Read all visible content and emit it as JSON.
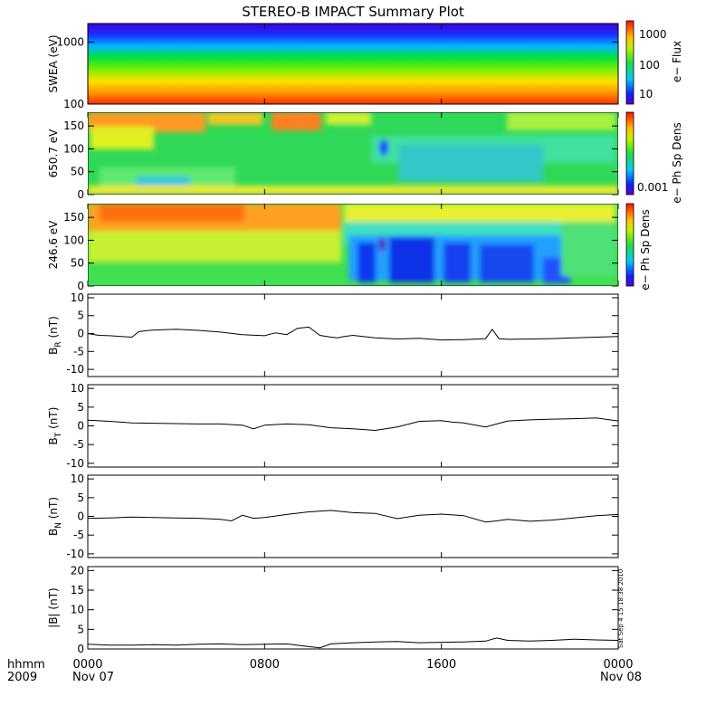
{
  "title": "STEREO-B IMPACT Summary Plot",
  "footer": {
    "hhmm": "hhmm",
    "year": "2009",
    "start_date": "Nov 07",
    "end_date": "Nov 08"
  },
  "stamp": "Sat Sep 4 15:18:38 2010",
  "x_axis": {
    "unit": "hhmm",
    "ticks": [
      "0000",
      "0800",
      "1600",
      "0000"
    ],
    "range_hours": [
      0,
      24
    ]
  },
  "colors": {
    "axis": "#000000",
    "trace": "#000000",
    "background": "#ffffff"
  },
  "chart_data": [
    {
      "id": "swea",
      "type": "heatmap",
      "ylabel": "SWEA (eV)",
      "y_scale": "log",
      "ylim": [
        100,
        2000
      ],
      "y_ticks": [
        100,
        1000
      ],
      "y_tick_labels": [
        "100",
        "1000"
      ],
      "colorbar": {
        "label": "e− Flux",
        "scale": "log",
        "ticks": [
          "10",
          "100",
          "1000"
        ]
      },
      "description_values": {
        "hours": [
          0,
          4,
          8,
          12,
          16,
          20,
          24
        ],
        "level_at_200eV": [
          0.92,
          0.92,
          0.91,
          0.9,
          0.9,
          0.91,
          0.92
        ]
      }
    },
    {
      "id": "pad650",
      "type": "heatmap",
      "ylabel": "650.7 eV",
      "ylim": [
        0,
        180
      ],
      "y_ticks": [
        0,
        50,
        100,
        150
      ],
      "colorbar": {
        "label": "e− Ph Sp Dens",
        "ticks": [
          "0.001"
        ]
      }
    },
    {
      "id": "pad246",
      "type": "heatmap",
      "ylabel": "246.6 eV",
      "ylim": [
        0,
        180
      ],
      "y_ticks": [
        0,
        50,
        100,
        150
      ],
      "colorbar": {
        "label": "e− Ph Sp Dens",
        "ticks": []
      }
    },
    {
      "id": "br",
      "type": "line",
      "ylabel": "B",
      "ysub": "R",
      "yunit": " (nT)",
      "ylim": [
        -12,
        11
      ],
      "y_ticks": [
        -10,
        -5,
        0,
        5,
        10
      ],
      "x": [
        0,
        0.5,
        1,
        1.5,
        2,
        2.3,
        2.6,
        3,
        4,
        5,
        6,
        7,
        8,
        8.5,
        9,
        9.5,
        10,
        10.5,
        11,
        11.3,
        11.6,
        12,
        13,
        14,
        15,
        16,
        17,
        18,
        18.3,
        18.6,
        19,
        20,
        21,
        22,
        23,
        24
      ],
      "y": [
        0,
        -0.5,
        -0.6,
        -0.8,
        -1.0,
        0.5,
        0.8,
        1.0,
        1.2,
        0.9,
        0.4,
        -0.3,
        -0.6,
        0.2,
        -0.3,
        1.5,
        1.8,
        -0.5,
        -1.0,
        -1.2,
        -0.8,
        -0.5,
        -1.2,
        -1.5,
        -1.3,
        -1.8,
        -1.7,
        -1.4,
        1.2,
        -1.4,
        -1.6,
        -1.5,
        -1.4,
        -1.2,
        -1.0,
        -0.8
      ]
    },
    {
      "id": "bt",
      "type": "line",
      "ylabel": "B",
      "ysub": "T",
      "yunit": " (nT)",
      "ylim": [
        -11,
        11
      ],
      "y_ticks": [
        -10,
        -5,
        0,
        5,
        10
      ],
      "x": [
        0,
        1,
        2,
        3,
        4,
        5,
        6,
        7,
        7.5,
        8,
        9,
        10,
        11,
        12,
        13,
        14,
        15,
        16,
        16.5,
        17,
        18,
        19,
        20,
        21,
        22,
        23,
        24
      ],
      "y": [
        1.5,
        1.2,
        0.8,
        0.7,
        0.6,
        0.5,
        0.5,
        0.2,
        -0.8,
        0.2,
        0.5,
        0.3,
        -0.5,
        -0.8,
        -1.2,
        -0.3,
        1.2,
        1.4,
        1.0,
        0.8,
        -0.3,
        1.3,
        1.6,
        1.8,
        1.9,
        2.1,
        1.3
      ]
    },
    {
      "id": "bn",
      "type": "line",
      "ylabel": "B",
      "ysub": "N",
      "yunit": " (nT)",
      "ylim": [
        -11,
        11
      ],
      "y_ticks": [
        -10,
        -5,
        0,
        5,
        10
      ],
      "x": [
        0,
        1,
        2,
        3,
        4,
        5,
        6,
        6.5,
        7,
        7.5,
        8,
        9,
        10,
        11,
        12,
        13,
        14,
        15,
        16,
        17,
        18,
        18.5,
        19,
        20,
        21,
        22,
        23,
        24
      ],
      "y": [
        -0.5,
        -0.4,
        -0.2,
        -0.3,
        -0.4,
        -0.5,
        -0.8,
        -1.2,
        0.3,
        -0.5,
        -0.3,
        0.5,
        1.2,
        1.6,
        1.0,
        0.8,
        -0.6,
        0.3,
        0.6,
        0.2,
        -1.5,
        -1.2,
        -0.8,
        -1.3,
        -1.0,
        -0.4,
        0.2,
        0.5
      ]
    },
    {
      "id": "bmag",
      "type": "line",
      "ylabel": "|B| (nT)",
      "ysub": "",
      "yunit": "",
      "ylim": [
        0,
        21
      ],
      "y_ticks": [
        0,
        5,
        10,
        15,
        20
      ],
      "x": [
        0,
        1,
        2,
        3,
        4,
        5,
        6,
        7,
        8,
        9,
        10,
        10.5,
        11,
        12,
        13,
        14,
        15,
        16,
        17,
        18,
        18.5,
        19,
        20,
        21,
        22,
        23,
        24
      ],
      "y": [
        1.2,
        1.0,
        1.0,
        1.1,
        1.0,
        1.2,
        1.3,
        1.1,
        1.2,
        1.3,
        0.6,
        0.3,
        1.3,
        1.6,
        1.8,
        1.9,
        1.6,
        1.7,
        1.8,
        2.0,
        2.8,
        2.2,
        2.0,
        2.2,
        2.5,
        2.3,
        2.2
      ]
    }
  ]
}
